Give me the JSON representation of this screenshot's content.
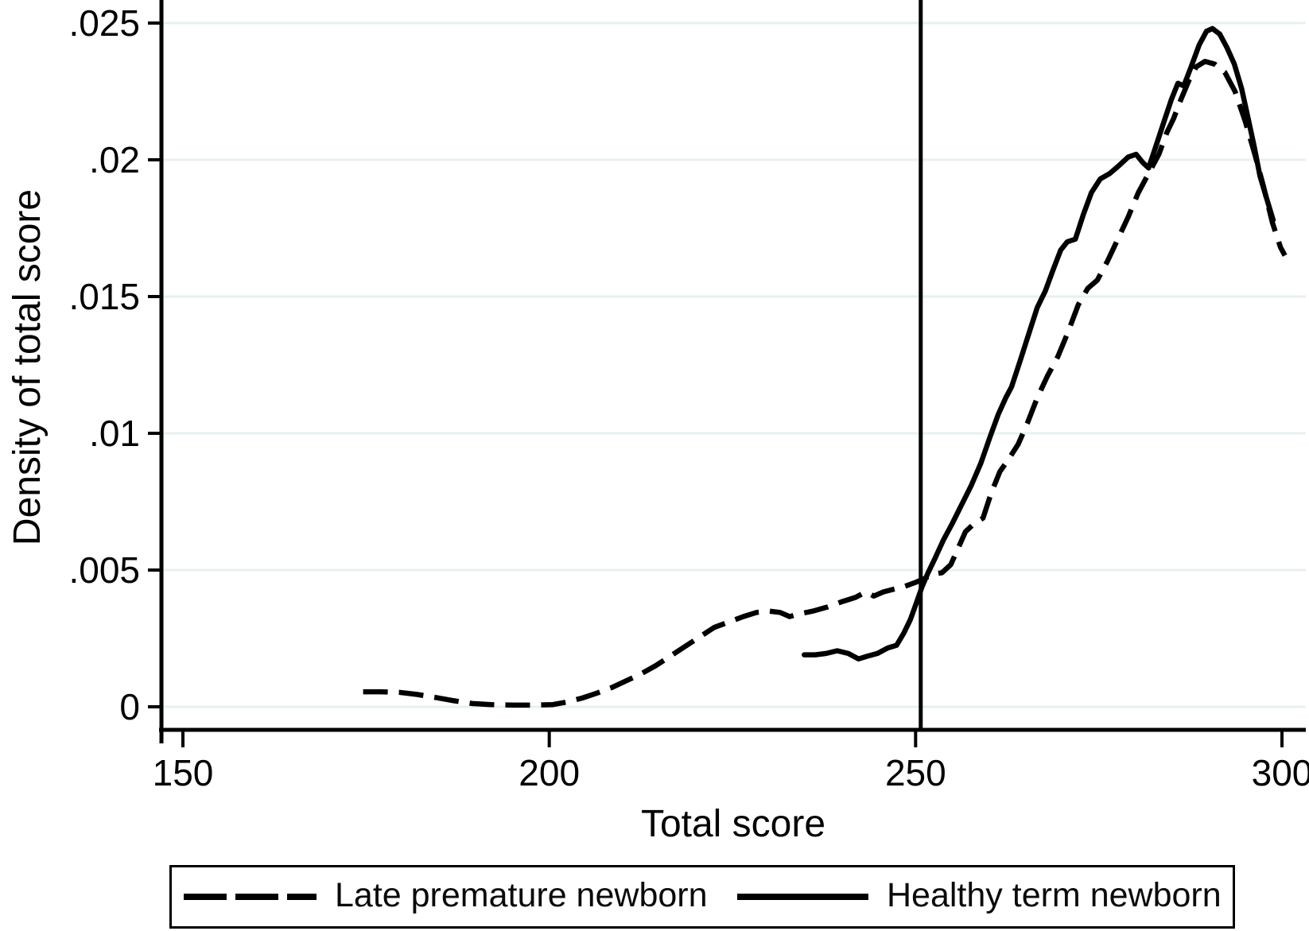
{
  "chart_data": {
    "type": "line",
    "title": "",
    "xlabel": "Total score",
    "ylabel": "Density of total score",
    "x_ticks": [
      150,
      200,
      250,
      300
    ],
    "x_tick_labels": [
      "150",
      "200",
      "250",
      "300"
    ],
    "y_ticks": [
      0,
      0.005,
      0.01,
      0.015,
      0.02,
      0.025
    ],
    "y_tick_labels": [
      "0",
      ".005",
      ".01",
      ".015",
      ".02",
      ".025"
    ],
    "xlim": [
      147,
      303
    ],
    "ylim": [
      0,
      0.0258
    ],
    "grid": "horizontal-only",
    "gridline_color": "#e7f0f2",
    "axis_color": "#000000",
    "line_color": "#000000",
    "reference_line_x": 250.7,
    "legend_position": "bottom",
    "series": [
      {
        "name": "Late premature newborn",
        "style": "dashed",
        "points": [
          [
            174.6,
            0.00055
          ],
          [
            177,
            0.00055
          ],
          [
            179.5,
            0.00053
          ],
          [
            182,
            0.00045
          ],
          [
            184.5,
            0.00034
          ],
          [
            187,
            0.00022
          ],
          [
            189.5,
            0.00012
          ],
          [
            192,
            8e-05
          ],
          [
            195,
            6e-05
          ],
          [
            198,
            6e-05
          ],
          [
            200.5,
            8e-05
          ],
          [
            202.5,
            0.00018
          ],
          [
            204.5,
            0.00032
          ],
          [
            206.5,
            0.0005
          ],
          [
            208.5,
            0.0007
          ],
          [
            210.5,
            0.00095
          ],
          [
            212.5,
            0.0012
          ],
          [
            214.5,
            0.0015
          ],
          [
            216.5,
            0.00185
          ],
          [
            218.5,
            0.0022
          ],
          [
            220.5,
            0.00255
          ],
          [
            222.5,
            0.0029
          ],
          [
            224.5,
            0.0031
          ],
          [
            226.5,
            0.0033
          ],
          [
            228.3,
            0.00345
          ],
          [
            230,
            0.0035
          ],
          [
            231.5,
            0.00345
          ],
          [
            232.8,
            0.0033
          ],
          [
            234.2,
            0.0034
          ],
          [
            236,
            0.0035
          ],
          [
            238,
            0.00365
          ],
          [
            240,
            0.00385
          ],
          [
            241.8,
            0.004
          ],
          [
            243.2,
            0.0042
          ],
          [
            244.3,
            0.00405
          ],
          [
            245.6,
            0.0042
          ],
          [
            247,
            0.0043
          ],
          [
            248.5,
            0.0044
          ],
          [
            250,
            0.00455
          ],
          [
            251.3,
            0.0047
          ],
          [
            252.3,
            0.00485
          ],
          [
            253.6,
            0.0049
          ],
          [
            254.8,
            0.0052
          ],
          [
            255.8,
            0.0058
          ],
          [
            256.8,
            0.0064
          ],
          [
            258,
            0.0067
          ],
          [
            259.2,
            0.0069
          ],
          [
            260.3,
            0.0078
          ],
          [
            261.5,
            0.0086
          ],
          [
            262.8,
            0.0091
          ],
          [
            264,
            0.0096
          ],
          [
            265.3,
            0.0104
          ],
          [
            266.6,
            0.0113
          ],
          [
            268,
            0.0121
          ],
          [
            269.4,
            0.0128
          ],
          [
            270.8,
            0.0137
          ],
          [
            272.2,
            0.0147
          ],
          [
            273.5,
            0.0153
          ],
          [
            274.8,
            0.0156
          ],
          [
            276.2,
            0.0163
          ],
          [
            277.6,
            0.0171
          ],
          [
            279,
            0.0179
          ],
          [
            280.4,
            0.0188
          ],
          [
            281.8,
            0.0195
          ],
          [
            283.2,
            0.0202
          ],
          [
            284.3,
            0.021
          ],
          [
            285.2,
            0.0215
          ],
          [
            286.2,
            0.0222
          ],
          [
            287.3,
            0.0229
          ],
          [
            288.3,
            0.0234
          ],
          [
            289.5,
            0.0236
          ],
          [
            290.8,
            0.0235
          ],
          [
            292.2,
            0.0232
          ],
          [
            293.6,
            0.0225
          ],
          [
            295,
            0.0214
          ],
          [
            296.3,
            0.0202
          ],
          [
            297.5,
            0.019
          ],
          [
            298.7,
            0.0177
          ],
          [
            299.8,
            0.0168
          ],
          [
            300.4,
            0.0165
          ]
        ]
      },
      {
        "name": "Healthy term newborn",
        "style": "solid",
        "points": [
          [
            234.8,
            0.0019
          ],
          [
            236.3,
            0.0019
          ],
          [
            237.8,
            0.00195
          ],
          [
            239.3,
            0.00205
          ],
          [
            240.8,
            0.00195
          ],
          [
            242.2,
            0.00175
          ],
          [
            243.4,
            0.00185
          ],
          [
            244.8,
            0.00195
          ],
          [
            246.2,
            0.00215
          ],
          [
            247.4,
            0.00225
          ],
          [
            248.4,
            0.0027
          ],
          [
            249.3,
            0.0032
          ],
          [
            250.1,
            0.0038
          ],
          [
            250.9,
            0.0044
          ],
          [
            251.7,
            0.0049
          ],
          [
            252.6,
            0.0054
          ],
          [
            253.8,
            0.0061
          ],
          [
            255,
            0.0067
          ],
          [
            256.3,
            0.0074
          ],
          [
            257.6,
            0.0081
          ],
          [
            258.9,
            0.0089
          ],
          [
            260.2,
            0.0099
          ],
          [
            261.3,
            0.0107
          ],
          [
            262.3,
            0.0113
          ],
          [
            263.1,
            0.0117
          ],
          [
            264.2,
            0.0126
          ],
          [
            265.4,
            0.0136
          ],
          [
            266.6,
            0.0146
          ],
          [
            267.7,
            0.0152
          ],
          [
            268.8,
            0.016
          ],
          [
            269.8,
            0.0167
          ],
          [
            270.7,
            0.017
          ],
          [
            271.8,
            0.0171
          ],
          [
            272.9,
            0.018
          ],
          [
            274,
            0.0188
          ],
          [
            275.2,
            0.0193
          ],
          [
            276.5,
            0.0195
          ],
          [
            277.8,
            0.0198
          ],
          [
            279,
            0.0201
          ],
          [
            280.1,
            0.0202
          ],
          [
            281,
            0.0199
          ],
          [
            281.8,
            0.0197
          ],
          [
            282.8,
            0.0205
          ],
          [
            283.9,
            0.0214
          ],
          [
            284.9,
            0.0222
          ],
          [
            285.8,
            0.0228
          ],
          [
            286.6,
            0.0227
          ],
          [
            287.6,
            0.0234
          ],
          [
            288.7,
            0.0242
          ],
          [
            289.7,
            0.0247
          ],
          [
            290.5,
            0.0248
          ],
          [
            291.5,
            0.0246
          ],
          [
            292.5,
            0.0241
          ],
          [
            293.5,
            0.0235
          ],
          [
            294.5,
            0.0226
          ],
          [
            295.4,
            0.0215
          ],
          [
            296.2,
            0.0205
          ],
          [
            297,
            0.0194
          ],
          [
            297.9,
            0.0186
          ],
          [
            298.8,
            0.0178
          ]
        ]
      }
    ]
  }
}
